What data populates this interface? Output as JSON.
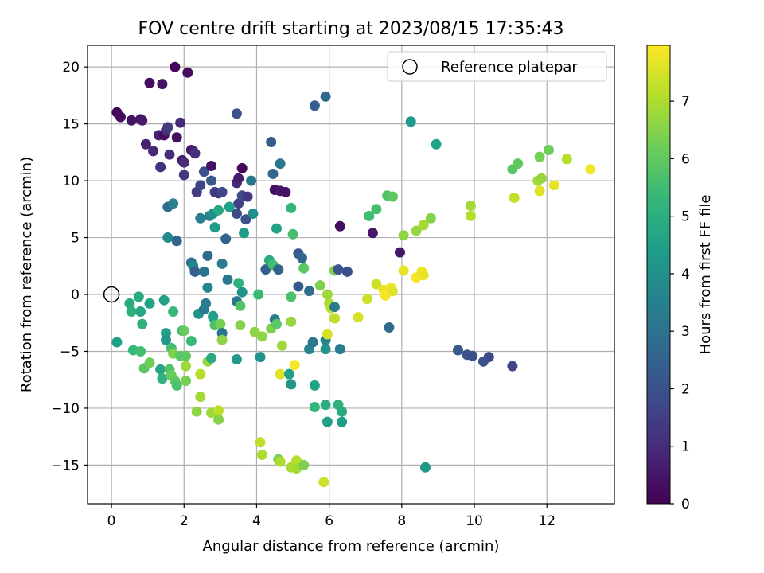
{
  "chart_data": {
    "type": "scatter",
    "title": "FOV centre drift starting at 2023/08/15 17:35:43",
    "xlabel": "Angular distance from reference (arcmin)",
    "ylabel": "Rotation from reference (arcmin)",
    "colorbar_label": "Hours from first FF file",
    "xlim": [
      -0.66,
      13.86
    ],
    "ylim": [
      -18.4,
      21.9
    ],
    "x_ticks": [
      0,
      2,
      4,
      6,
      8,
      10,
      12
    ],
    "y_ticks": [
      -15,
      -10,
      -5,
      0,
      5,
      10,
      15,
      20
    ],
    "colorbar_ticks": [
      0,
      1,
      2,
      3,
      4,
      5,
      6,
      7
    ],
    "colorbar_range": [
      0,
      7.97
    ],
    "colormap": "viridis",
    "grid": true,
    "legend": {
      "placement": "top-right",
      "entries": [
        "Reference platepar"
      ]
    },
    "reference_point": {
      "x": 0,
      "y": 0
    },
    "series": [
      {
        "points": [
          [
            0.15,
            16.0,
            0.1
          ],
          [
            0.25,
            15.6,
            0.2
          ],
          [
            0.55,
            15.3,
            0.4
          ],
          [
            0.8,
            15.4,
            0.5
          ],
          [
            0.85,
            15.3,
            0.6
          ],
          [
            0.95,
            13.2,
            0.7
          ],
          [
            1.05,
            18.6,
            0.3
          ],
          [
            1.15,
            12.6,
            0.9
          ],
          [
            1.3,
            14.0,
            0.8
          ],
          [
            1.35,
            11.2,
            1.2
          ],
          [
            1.4,
            18.5,
            0.4
          ],
          [
            1.45,
            14.0,
            0.2
          ],
          [
            1.5,
            14.4,
            1.1
          ],
          [
            1.55,
            14.7,
            1.4
          ],
          [
            1.6,
            12.3,
            1.0
          ],
          [
            1.75,
            20.0,
            0.1
          ],
          [
            1.8,
            13.8,
            0.3
          ],
          [
            1.9,
            15.1,
            0.9
          ],
          [
            1.95,
            11.8,
            0.6
          ],
          [
            2.0,
            11.6,
            1.0
          ],
          [
            2.0,
            10.5,
            1.3
          ],
          [
            2.1,
            19.5,
            0.2
          ],
          [
            2.2,
            12.7,
            0.4
          ],
          [
            2.25,
            12.6,
            0.7
          ],
          [
            2.3,
            12.4,
            1.1
          ],
          [
            2.35,
            9.0,
            1.4
          ],
          [
            2.45,
            9.6,
            1.6
          ],
          [
            2.55,
            10.8,
            2.0
          ],
          [
            2.75,
            11.3,
            0.4
          ],
          [
            2.75,
            10.0,
            2.2
          ],
          [
            2.85,
            9.0,
            1.5
          ],
          [
            2.95,
            8.9,
            1.2
          ],
          [
            3.05,
            9.0,
            1.7
          ],
          [
            3.45,
            15.9,
            2.0
          ],
          [
            3.45,
            9.8,
            0.9
          ],
          [
            3.5,
            10.2,
            0.6
          ],
          [
            3.6,
            11.1,
            0.2
          ],
          [
            3.5,
            8.0,
            1.5
          ],
          [
            3.6,
            8.7,
            1.8
          ],
          [
            3.75,
            8.6,
            1.3
          ],
          [
            3.85,
            10.0,
            3.1
          ],
          [
            3.45,
            7.1,
            1.8
          ],
          [
            3.7,
            6.6,
            2.0
          ],
          [
            3.9,
            7.1,
            4.0
          ],
          [
            4.4,
            13.4,
            2.3
          ],
          [
            4.45,
            10.6,
            2.6
          ],
          [
            4.5,
            9.2,
            0.3
          ],
          [
            4.65,
            11.5,
            3.1
          ],
          [
            4.65,
            9.1,
            0.5
          ],
          [
            4.8,
            9.0,
            0.4
          ],
          [
            4.95,
            7.6,
            5.2
          ],
          [
            4.55,
            5.8,
            4.6
          ],
          [
            5.0,
            5.3,
            5.6
          ],
          [
            5.6,
            16.6,
            2.4
          ],
          [
            5.9,
            17.4,
            2.7
          ],
          [
            6.3,
            6.0,
            0.3
          ],
          [
            7.2,
            5.4,
            0.5
          ],
          [
            7.95,
            3.7,
            0.5
          ],
          [
            8.25,
            15.2,
            4.3
          ],
          [
            8.95,
            13.2,
            4.6
          ],
          [
            7.1,
            6.9,
            5.5
          ],
          [
            7.3,
            7.5,
            5.6
          ],
          [
            7.6,
            8.7,
            5.8
          ],
          [
            7.75,
            8.6,
            6.0
          ],
          [
            8.05,
            5.2,
            6.6
          ],
          [
            8.4,
            5.6,
            6.7
          ],
          [
            8.6,
            6.1,
            6.9
          ],
          [
            8.8,
            6.7,
            6.5
          ],
          [
            9.9,
            7.8,
            6.9
          ],
          [
            9.9,
            6.9,
            7.1
          ],
          [
            11.05,
            11.0,
            5.9
          ],
          [
            11.2,
            11.5,
            6.0
          ],
          [
            11.1,
            8.5,
            7.3
          ],
          [
            11.75,
            10.0,
            6.9
          ],
          [
            11.85,
            10.2,
            6.7
          ],
          [
            11.8,
            12.1,
            6.3
          ],
          [
            12.05,
            12.7,
            6.2
          ],
          [
            11.8,
            9.1,
            7.6
          ],
          [
            12.2,
            9.6,
            7.7
          ],
          [
            12.55,
            11.9,
            7.1
          ],
          [
            13.2,
            11.0,
            7.8
          ],
          [
            1.55,
            5.0,
            3.8
          ],
          [
            1.55,
            7.7,
            2.8
          ],
          [
            1.7,
            8.0,
            3.5
          ],
          [
            1.8,
            4.7,
            2.6
          ],
          [
            2.2,
            2.8,
            2.9
          ],
          [
            2.25,
            2.5,
            3.6
          ],
          [
            2.3,
            2.0,
            2.4
          ],
          [
            2.45,
            6.7,
            3.4
          ],
          [
            2.55,
            2.0,
            3.1
          ],
          [
            2.65,
            3.4,
            2.8
          ],
          [
            2.7,
            6.9,
            3.6
          ],
          [
            2.8,
            7.1,
            3.9
          ],
          [
            2.85,
            5.9,
            4.3
          ],
          [
            2.95,
            7.4,
            4.8
          ],
          [
            3.05,
            2.7,
            3.3
          ],
          [
            3.15,
            4.9,
            2.5
          ],
          [
            3.25,
            7.7,
            4.5
          ],
          [
            3.2,
            1.3,
            3.2
          ],
          [
            2.65,
            0.6,
            3.6
          ],
          [
            3.5,
            1.0,
            5.1
          ],
          [
            3.6,
            0.2,
            4.0
          ],
          [
            3.65,
            5.4,
            4.4
          ],
          [
            4.25,
            2.2,
            2.4
          ],
          [
            4.35,
            3.0,
            4.9
          ],
          [
            4.45,
            2.6,
            5.5
          ],
          [
            4.6,
            2.2,
            2.5
          ],
          [
            4.95,
            -0.2,
            5.7
          ],
          [
            5.15,
            3.6,
            2.2
          ],
          [
            5.25,
            3.2,
            2.6
          ],
          [
            5.15,
            0.7,
            2.2
          ],
          [
            5.3,
            2.3,
            5.9
          ],
          [
            5.45,
            0.3,
            2.8
          ],
          [
            5.75,
            0.8,
            6.4
          ],
          [
            6.15,
            2.1,
            6.5
          ],
          [
            6.25,
            2.2,
            2.1
          ],
          [
            6.5,
            2.0,
            1.9
          ],
          [
            5.95,
            0.0,
            6.8
          ],
          [
            6.0,
            -0.8,
            7.0
          ],
          [
            6.05,
            -1.2,
            7.2
          ],
          [
            6.15,
            -1.1,
            3.3
          ],
          [
            6.15,
            -2.1,
            7.2
          ],
          [
            6.8,
            -2.0,
            7.5
          ],
          [
            7.05,
            -0.4,
            7.4
          ],
          [
            7.3,
            0.9,
            7.4
          ],
          [
            7.5,
            0.4,
            7.7
          ],
          [
            7.55,
            -0.1,
            7.9
          ],
          [
            7.7,
            0.6,
            7.8
          ],
          [
            7.75,
            0.3,
            7.6
          ],
          [
            8.05,
            2.1,
            7.7
          ],
          [
            8.4,
            1.5,
            7.9
          ],
          [
            8.55,
            2.0,
            7.8
          ],
          [
            8.6,
            1.7,
            7.7
          ],
          [
            0.15,
            -4.2,
            4.5
          ],
          [
            0.5,
            -0.8,
            4.9
          ],
          [
            0.55,
            -1.5,
            5.0
          ],
          [
            0.6,
            -4.9,
            5.3
          ],
          [
            0.75,
            -0.2,
            4.8
          ],
          [
            0.8,
            -1.5,
            4.7
          ],
          [
            0.8,
            -5.0,
            5.6
          ],
          [
            0.85,
            -2.6,
            5.1
          ],
          [
            0.9,
            -6.5,
            5.9
          ],
          [
            1.05,
            -0.8,
            4.6
          ],
          [
            1.05,
            -6.0,
            6.2
          ],
          [
            1.35,
            -6.6,
            4.7
          ],
          [
            1.4,
            -7.4,
            5.1
          ],
          [
            1.45,
            -0.5,
            4.6
          ],
          [
            1.5,
            -3.4,
            4.5
          ],
          [
            1.5,
            -4.0,
            4.2
          ],
          [
            1.6,
            -6.6,
            5.8
          ],
          [
            1.65,
            -7.1,
            6.1
          ],
          [
            1.65,
            -4.7,
            5.6
          ],
          [
            1.7,
            -1.5,
            5.3
          ],
          [
            1.7,
            -5.2,
            6.4
          ],
          [
            1.75,
            -7.6,
            6.0
          ],
          [
            1.8,
            -8.0,
            5.7
          ],
          [
            1.9,
            -5.4,
            5.9
          ],
          [
            1.95,
            -3.2,
            5.4
          ],
          [
            2.0,
            -3.2,
            6.1
          ],
          [
            2.05,
            -7.6,
            6.3
          ],
          [
            2.05,
            -5.4,
            6.0
          ],
          [
            2.05,
            -6.3,
            6.8
          ],
          [
            2.2,
            -4.1,
            5.4
          ],
          [
            2.35,
            -10.3,
            6.6
          ],
          [
            2.45,
            -9.0,
            6.9
          ],
          [
            2.4,
            -1.7,
            4.1
          ],
          [
            2.45,
            -7.0,
            7.1
          ],
          [
            2.55,
            -1.3,
            3.2
          ],
          [
            2.6,
            -0.8,
            3.3
          ],
          [
            2.65,
            -5.9,
            6.7
          ],
          [
            2.75,
            -5.6,
            4.8
          ],
          [
            2.8,
            -1.9,
            4.2
          ],
          [
            2.8,
            -2.0,
            4.5
          ],
          [
            2.75,
            -10.4,
            6.8
          ],
          [
            2.85,
            -2.7,
            5.7
          ],
          [
            2.95,
            -10.2,
            7.2
          ],
          [
            2.95,
            -11.0,
            6.5
          ],
          [
            3.0,
            -2.6,
            6.3
          ],
          [
            3.05,
            -3.4,
            3.1
          ],
          [
            3.05,
            -4.0,
            6.6
          ],
          [
            3.45,
            -0.6,
            3.2
          ],
          [
            3.45,
            -5.7,
            4.3
          ],
          [
            3.55,
            -1.0,
            5.8
          ],
          [
            3.55,
            -2.7,
            6.5
          ],
          [
            3.95,
            -3.3,
            6.6
          ],
          [
            4.05,
            0.0,
            5.4
          ],
          [
            4.1,
            -5.5,
            4.0
          ],
          [
            4.15,
            -3.7,
            6.6
          ],
          [
            4.1,
            -13.0,
            7.2
          ],
          [
            4.15,
            -14.1,
            7.0
          ],
          [
            4.4,
            -3.0,
            6.4
          ],
          [
            4.5,
            -2.2,
            3.3
          ],
          [
            4.55,
            -2.6,
            5.9
          ],
          [
            4.6,
            -14.5,
            6.3
          ],
          [
            4.65,
            -7.0,
            7.6
          ],
          [
            4.65,
            -14.7,
            7.0
          ],
          [
            4.7,
            -4.5,
            6.8
          ],
          [
            4.9,
            -7.0,
            4.5
          ],
          [
            4.95,
            -2.4,
            6.7
          ],
          [
            4.95,
            -7.9,
            4.2
          ],
          [
            4.95,
            -15.2,
            7.0
          ],
          [
            5.05,
            -6.2,
            7.9
          ],
          [
            5.1,
            -14.6,
            7.1
          ],
          [
            5.1,
            -15.3,
            6.9
          ],
          [
            5.3,
            -15.0,
            6.4
          ],
          [
            5.45,
            -4.8,
            3.6
          ],
          [
            5.55,
            -4.2,
            3.2
          ],
          [
            5.6,
            -8.0,
            4.6
          ],
          [
            5.6,
            -9.9,
            5.2
          ],
          [
            5.85,
            -16.5,
            7.4
          ],
          [
            5.9,
            -4.0,
            3.5
          ],
          [
            5.9,
            -4.8,
            4.1
          ],
          [
            5.9,
            -9.7,
            4.9
          ],
          [
            5.95,
            -11.2,
            4.5
          ],
          [
            5.95,
            -3.5,
            7.5
          ],
          [
            6.25,
            -9.7,
            5.1
          ],
          [
            6.3,
            -4.8,
            3.3
          ],
          [
            6.35,
            -10.3,
            4.8
          ],
          [
            6.35,
            -11.2,
            4.4
          ],
          [
            7.65,
            -2.9,
            2.8
          ],
          [
            8.65,
            -15.2,
            4.2
          ],
          [
            9.55,
            -4.9,
            2.2
          ],
          [
            9.8,
            -5.3,
            2.0
          ],
          [
            9.95,
            -5.4,
            1.9
          ],
          [
            10.25,
            -5.9,
            2.1
          ],
          [
            10.4,
            -5.5,
            1.8
          ],
          [
            11.05,
            -6.3,
            1.7
          ]
        ]
      }
    ]
  }
}
